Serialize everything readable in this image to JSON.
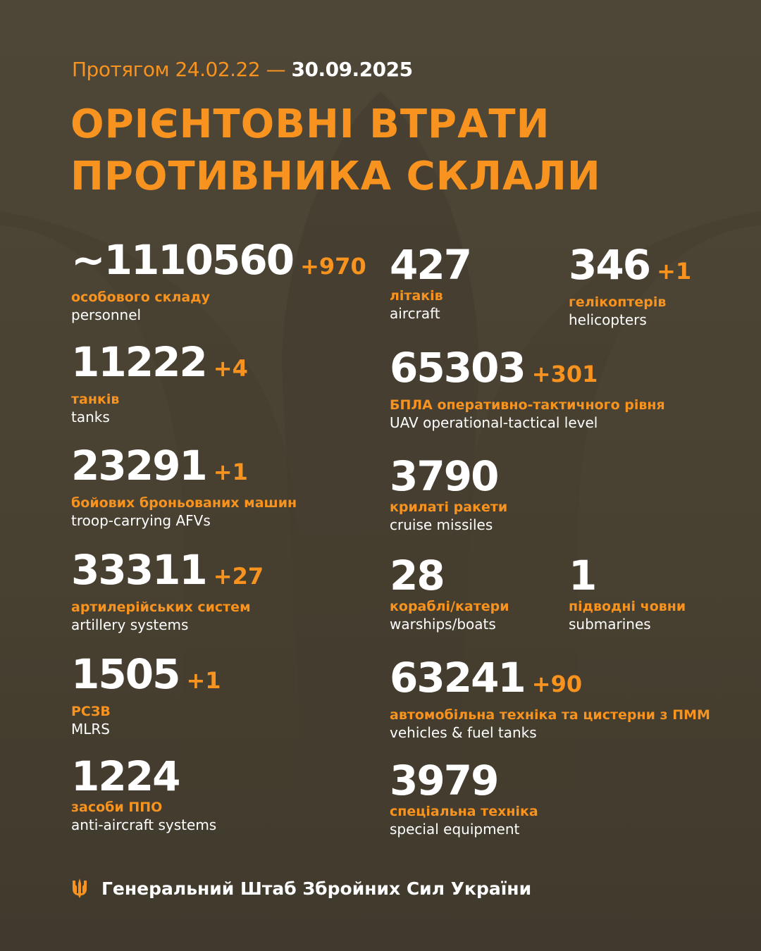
{
  "header": {
    "period_label": "Протягом 24.02.22 —",
    "end_date": "30.09.2025",
    "title_line1": "ОРІЄНТОВНІ ВТРАТИ",
    "title_line2": "ПРОТИВНИКА СКЛАЛИ"
  },
  "stats": [
    {
      "value": "~1110560",
      "delta": "+970",
      "ua": "особового складу",
      "en": "personnel"
    },
    {
      "value": "11222",
      "delta": "+4",
      "ua": "танків",
      "en": "tanks"
    },
    {
      "value": "23291",
      "delta": "+1",
      "ua": "бойових броньованих машин",
      "en": "troop-carrying AFVs"
    },
    {
      "value": "33311",
      "delta": "+27",
      "ua": "артилерійських систем",
      "en": "artillery systems"
    },
    {
      "value": "1505",
      "delta": "+1",
      "ua": "РСЗВ",
      "en": "MLRS"
    },
    {
      "value": "1224",
      "delta": "",
      "ua": "засоби ППО",
      "en": "anti-aircraft systems"
    },
    {
      "value": "427",
      "delta": "",
      "ua": "літаків",
      "en": "aircraft"
    },
    {
      "value": "346",
      "delta": "+1",
      "ua": "гелікоптерів",
      "en": "helicopters"
    },
    {
      "value": "65303",
      "delta": "+301",
      "ua": "БПЛА оперативно-тактичного рівня",
      "en": "UAV operational-tactical level"
    },
    {
      "value": "3790",
      "delta": "",
      "ua": "крилаті ракети",
      "en": "cruise missiles"
    },
    {
      "value": "28",
      "delta": "",
      "ua": "кораблі/катери",
      "en": "warships/boats"
    },
    {
      "value": "1",
      "delta": "",
      "ua": "підводні човни",
      "en": "submarines"
    },
    {
      "value": "63241",
      "delta": "+90",
      "ua": "автомобільна техніка та цистерни з ПММ",
      "en": "vehicles & fuel tanks"
    },
    {
      "value": "3979",
      "delta": "",
      "ua": "спеціальна техніка",
      "en": "special equipment"
    }
  ],
  "footer": {
    "org": "Генеральний Штаб Збройних Сил України",
    "emblem": "trident-icon"
  },
  "colors": {
    "accent": "#f7931e",
    "background": "#4a4232"
  }
}
